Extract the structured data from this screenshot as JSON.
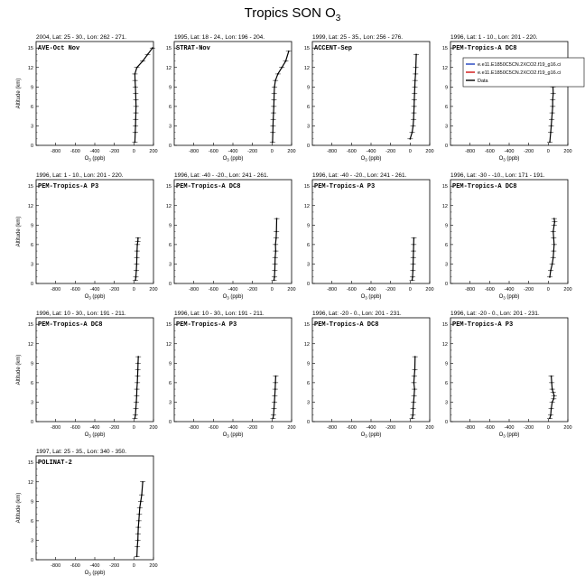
{
  "figure": {
    "title_main": "Tropics SON O",
    "title_sub": "3"
  },
  "axis_text": {
    "ylabel": "Altitude (km)",
    "xlabel_main": "O",
    "xlabel_sub": "3",
    "xlabel_unit": " (ppb)"
  },
  "legend": [
    {
      "label": "e.e11.E1850C5CN.2XCO2.f19_g16.ci",
      "color": "#1f3fbf"
    },
    {
      "label": "e.e11.E1850C5CN.2XCO2.f19_g16.ci",
      "color": "#d01010"
    },
    {
      "label": "Data",
      "color": "#000000"
    }
  ],
  "chart_data": [
    {
      "type": "line",
      "header": "2004, Lat: 25 - 30., Lon: 262 - 271.",
      "campaign": "AVE-Oct Nov",
      "xlim": [
        -1000,
        200
      ],
      "xticks": [
        -800,
        -600,
        -400,
        -200,
        0,
        200
      ],
      "ylim": [
        0,
        16
      ],
      "yticks": [
        0,
        3,
        6,
        9,
        12,
        15
      ],
      "series": [
        {
          "name": "Data",
          "x": [
            10,
            14,
            16,
            18,
            20,
            22,
            20,
            18,
            15,
            12,
            10,
            30,
            90,
            140,
            190
          ],
          "y": [
            0.5,
            2,
            3,
            4,
            5,
            6,
            7,
            8,
            9,
            10,
            11,
            12,
            13,
            14,
            15
          ]
        }
      ]
    },
    {
      "type": "line",
      "header": "1995, Lat: 18 - 24., Lon: 196 - 204.",
      "campaign": "STRAT-Nov",
      "xlim": [
        -1000,
        200
      ],
      "xticks": [
        -800,
        -600,
        -400,
        -200,
        0,
        200
      ],
      "ylim": [
        0,
        16
      ],
      "yticks": [
        0,
        3,
        6,
        9,
        12,
        15
      ],
      "series": [
        {
          "name": "Data",
          "x": [
            5,
            8,
            10,
            12,
            15,
            18,
            20,
            22,
            25,
            35,
            60,
            100,
            140,
            170
          ],
          "y": [
            0.5,
            2,
            3,
            4,
            5,
            6,
            7,
            8,
            9,
            10,
            11,
            12,
            13,
            14.5
          ]
        }
      ]
    },
    {
      "type": "line",
      "header": "1999, Lat: 25 - 35., Lon: 256 - 276.",
      "campaign": "ACCENT-Sep",
      "xlim": [
        -1000,
        200
      ],
      "xticks": [
        -800,
        -600,
        -400,
        -200,
        0,
        200
      ],
      "ylim": [
        0,
        16
      ],
      "yticks": [
        0,
        3,
        6,
        9,
        12,
        15
      ],
      "series": [
        {
          "name": "Data",
          "x": [
            0,
            20,
            30,
            35,
            38,
            40,
            42,
            45,
            48,
            50,
            55,
            58,
            62
          ],
          "y": [
            1,
            2,
            3,
            4,
            5,
            6,
            7,
            8,
            9,
            10,
            11,
            12,
            14
          ]
        }
      ]
    },
    {
      "type": "line",
      "header": "1996, Lat: 1 - 10., Lon: 201 - 220.",
      "campaign": "PEM-Tropics-A DC8",
      "xlim": [
        -1000,
        200
      ],
      "xticks": [
        -800,
        -600,
        -400,
        -200,
        0,
        200
      ],
      "ylim": [
        0,
        16
      ],
      "yticks": [
        0,
        3,
        6,
        9,
        12,
        15
      ],
      "series": [
        {
          "name": "Data",
          "x": [
            15,
            25,
            30,
            35,
            40,
            45,
            45,
            50,
            48,
            52,
            55
          ],
          "y": [
            0.5,
            2,
            3,
            4,
            5,
            6,
            7,
            8,
            9,
            9.5,
            10
          ]
        }
      ]
    },
    {
      "type": "line",
      "header": "1996, Lat: 1 - 10., Lon: 201 - 220.",
      "campaign": "PEM-Tropics-A P3",
      "xlim": [
        -1000,
        200
      ],
      "xticks": [
        -800,
        -600,
        -400,
        -200,
        0,
        200
      ],
      "ylim": [
        0,
        16
      ],
      "yticks": [
        0,
        3,
        6,
        9,
        12,
        15
      ],
      "series": [
        {
          "name": "Data",
          "x": [
            15,
            20,
            25,
            28,
            30,
            32,
            35,
            40,
            42
          ],
          "y": [
            0.5,
            1,
            2,
            3,
            4,
            5,
            6,
            6.5,
            7
          ]
        }
      ]
    },
    {
      "type": "line",
      "header": "1996, Lat: -40 - -20., Lon: 241 - 261.",
      "campaign": "PEM-Tropics-A DC8",
      "xlim": [
        -1000,
        200
      ],
      "xticks": [
        -800,
        -600,
        -400,
        -200,
        0,
        200
      ],
      "ylim": [
        0,
        16
      ],
      "yticks": [
        0,
        3,
        6,
        9,
        12,
        15
      ],
      "series": [
        {
          "name": "Data",
          "x": [
            20,
            25,
            28,
            30,
            32,
            38,
            35,
            42,
            45,
            48
          ],
          "y": [
            0.5,
            1,
            2,
            3,
            4,
            5,
            6,
            7,
            8,
            10
          ]
        }
      ]
    },
    {
      "type": "line",
      "header": "1996, Lat: -40 - -20., Lon: 241 - 261.",
      "campaign": "PEM-Tropics-A P3",
      "xlim": [
        -1000,
        200
      ],
      "xticks": [
        -800,
        -600,
        -400,
        -200,
        0,
        200
      ],
      "ylim": [
        0,
        16
      ],
      "yticks": [
        0,
        3,
        6,
        9,
        12,
        15
      ],
      "series": [
        {
          "name": "Data",
          "x": [
            20,
            25,
            28,
            30,
            32,
            34,
            36,
            38
          ],
          "y": [
            0.5,
            1,
            2,
            3,
            4,
            5,
            6,
            7
          ]
        }
      ]
    },
    {
      "type": "line",
      "header": "1996, Lat: -30 - -10., Lon: 171 - 191.",
      "campaign": "PEM-Tropics-A DC8",
      "xlim": [
        -1000,
        200
      ],
      "xticks": [
        -800,
        -600,
        -400,
        -200,
        0,
        200
      ],
      "ylim": [
        0,
        16
      ],
      "yticks": [
        0,
        3,
        6,
        9,
        12,
        15
      ],
      "series": [
        {
          "name": "Data",
          "x": [
            15,
            25,
            40,
            50,
            55,
            60,
            55,
            50,
            60,
            65,
            60
          ],
          "y": [
            1,
            2,
            3,
            4,
            5,
            6,
            7,
            8,
            9,
            9.5,
            10
          ]
        }
      ]
    },
    {
      "type": "line",
      "header": "1996, Lat: 10 - 30., Lon: 191 - 211.",
      "campaign": "PEM-Tropics-A DC8",
      "xlim": [
        -1000,
        200
      ],
      "xticks": [
        -800,
        -600,
        -400,
        -200,
        0,
        200
      ],
      "ylim": [
        0,
        16
      ],
      "yticks": [
        0,
        3,
        6,
        9,
        12,
        15
      ],
      "series": [
        {
          "name": "Data",
          "x": [
            10,
            15,
            20,
            25,
            28,
            30,
            35,
            38,
            40,
            42,
            45
          ],
          "y": [
            0.5,
            1,
            2,
            3,
            4,
            5,
            6,
            7,
            8,
            9,
            10
          ]
        }
      ]
    },
    {
      "type": "line",
      "header": "1996, Lat: 10 - 30., Lon: 191 - 211.",
      "campaign": "PEM-Tropics-A P3",
      "xlim": [
        -1000,
        200
      ],
      "xticks": [
        -800,
        -600,
        -400,
        -200,
        0,
        200
      ],
      "ylim": [
        0,
        16
      ],
      "yticks": [
        0,
        3,
        6,
        9,
        12,
        15
      ],
      "series": [
        {
          "name": "Data",
          "x": [
            10,
            15,
            20,
            25,
            28,
            32,
            35,
            38
          ],
          "y": [
            0.5,
            1,
            2,
            3,
            4,
            5,
            6,
            7
          ]
        }
      ]
    },
    {
      "type": "line",
      "header": "1996, Lat: -20 - 0., Lon: 201 - 231.",
      "campaign": "PEM-Tropics-A DC8",
      "xlim": [
        -1000,
        200
      ],
      "xticks": [
        -800,
        -600,
        -400,
        -200,
        0,
        200
      ],
      "ylim": [
        0,
        16
      ],
      "yticks": [
        0,
        3,
        6,
        9,
        12,
        15
      ],
      "series": [
        {
          "name": "Data",
          "x": [
            20,
            28,
            30,
            35,
            40,
            45,
            38,
            42,
            48,
            50
          ],
          "y": [
            0.5,
            1,
            2,
            3,
            4,
            5,
            6,
            7,
            8,
            10
          ]
        }
      ]
    },
    {
      "type": "line",
      "header": "1996, Lat: -20 - 0., Lon: 201 - 231.",
      "campaign": "PEM-Tropics-A P3",
      "xlim": [
        -1000,
        200
      ],
      "xticks": [
        -800,
        -600,
        -400,
        -200,
        0,
        200
      ],
      "ylim": [
        0,
        16
      ],
      "yticks": [
        0,
        3,
        6,
        9,
        12,
        15
      ],
      "series": [
        {
          "name": "Data",
          "x": [
            15,
            25,
            30,
            40,
            55,
            60,
            50,
            40,
            35,
            30
          ],
          "y": [
            0.5,
            1,
            2,
            3,
            3.5,
            4,
            4.5,
            5,
            6,
            7
          ]
        }
      ]
    },
    {
      "type": "line",
      "header": "1997, Lat: 25 - 35., Lon: 340 - 350.",
      "campaign": "POLINAT-2",
      "xlim": [
        -1000,
        200
      ],
      "xticks": [
        -800,
        -600,
        -400,
        -200,
        0,
        200
      ],
      "ylim": [
        0,
        16
      ],
      "yticks": [
        0,
        3,
        6,
        9,
        12,
        15
      ],
      "series": [
        {
          "name": "Data",
          "x": [
            30,
            35,
            40,
            42,
            45,
            50,
            55,
            60,
            70,
            80,
            90
          ],
          "y": [
            0.5,
            2,
            3,
            4,
            5,
            6,
            7,
            8,
            9,
            10,
            12
          ]
        }
      ]
    }
  ]
}
